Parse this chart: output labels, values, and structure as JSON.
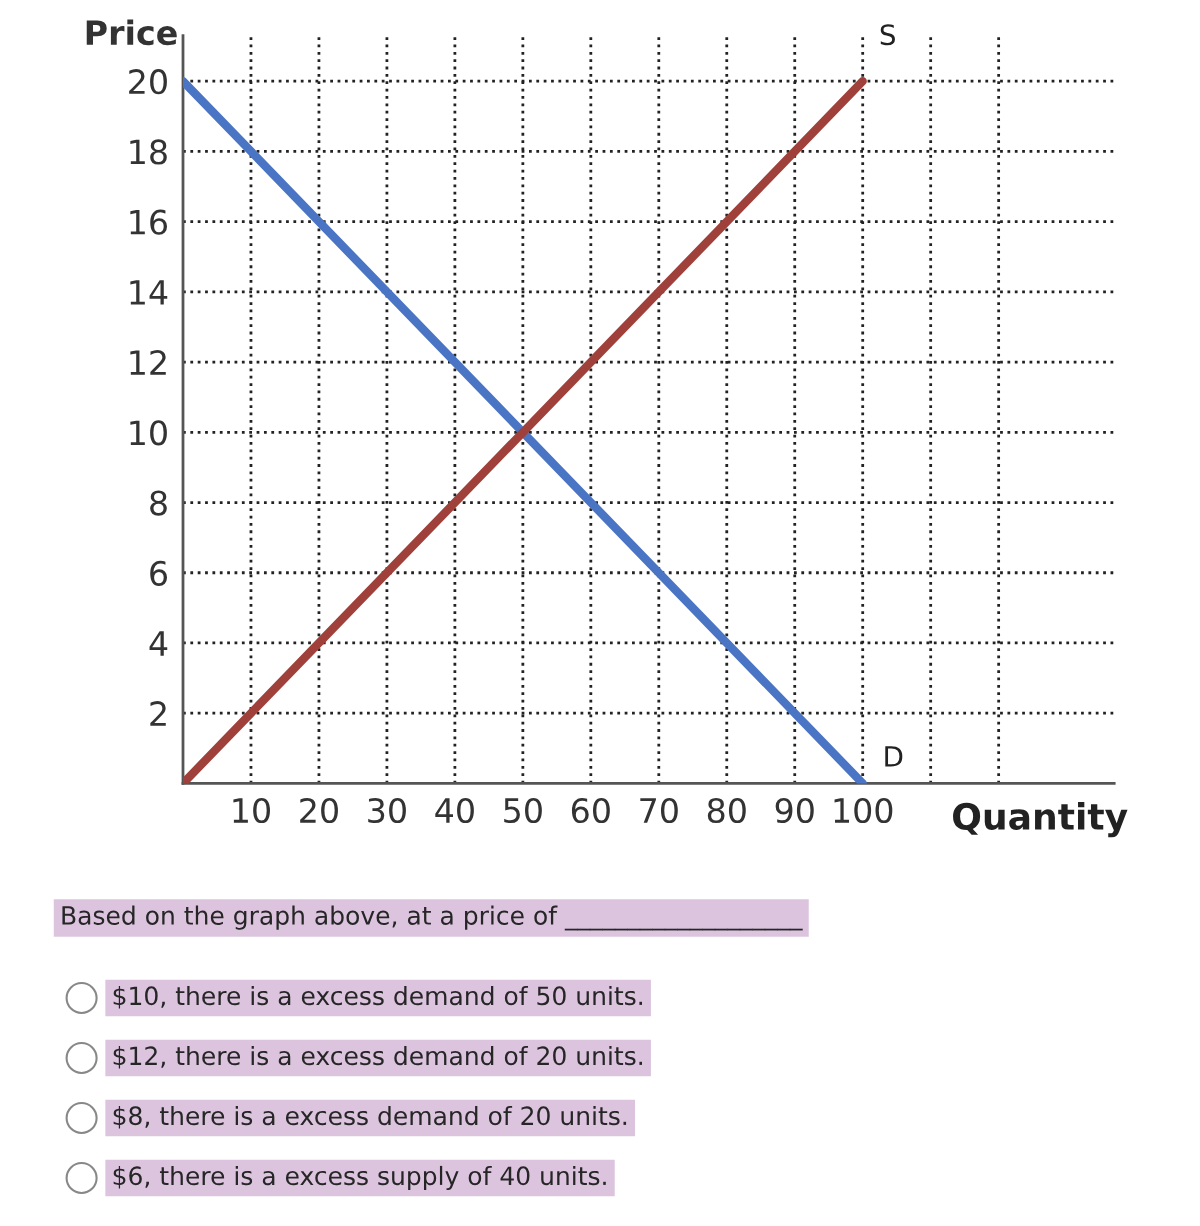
{
  "chart_data": {
    "type": "line",
    "xlabel": "Quantity",
    "ylabel": "Price",
    "x": [
      0,
      100
    ],
    "series": [
      {
        "name": "D",
        "color": "#4a74c4",
        "values": [
          20,
          0
        ]
      },
      {
        "name": "S",
        "color": "#a0403a",
        "values": [
          0,
          20
        ]
      }
    ],
    "xlim": [
      0,
      137
    ],
    "ylim": [
      0,
      21.3
    ],
    "xticks": [
      10,
      20,
      30,
      40,
      50,
      60,
      70,
      80,
      90,
      100,
      {
        "value": 110,
        "label": null
      },
      {
        "value": 120,
        "label": null
      }
    ],
    "yticks": [
      2,
      4,
      6,
      8,
      10,
      12,
      14,
      16,
      18,
      20
    ],
    "grid": true,
    "line_style": "solid",
    "marker": "none",
    "annotations": [
      "Based on the graph above, at a price of ___________________",
      "$10, there is a excess demand of 50 units.",
      "$12, there is a excess demand of 20 units.",
      "$8, there is a excess demand of 20 units.",
      "$6, there is a excess supply of 40 units."
    ]
  }
}
